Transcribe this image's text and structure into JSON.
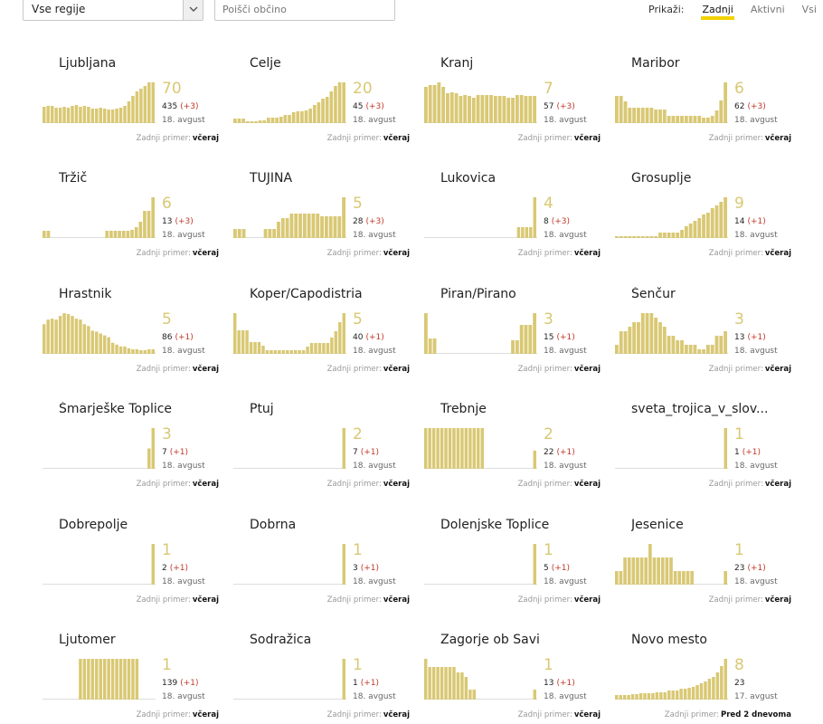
{
  "filters": {
    "region_select": {
      "value": "Vse regije"
    },
    "search": {
      "placeholder": "Poišči občino"
    },
    "show": {
      "label": "Prikaži:",
      "options": [
        "Zadnji",
        "Aktivni",
        "Vsi"
      ],
      "active": "Zadnji"
    }
  },
  "colors": {
    "bar": "#d9c874",
    "delta": "#c0392b",
    "accent": "#f2d200"
  },
  "last_case_label": "Zadnji primer:",
  "municipalities": [
    {
      "name": "Ljubljana",
      "active": "70",
      "total": "435",
      "delta": "(+3)",
      "date": "18. avgust",
      "last": "včeraj",
      "series": [
        18,
        19,
        19,
        17,
        17,
        18,
        17,
        19,
        20,
        18,
        19,
        18,
        16,
        16,
        17,
        16,
        15,
        15,
        16,
        17,
        19,
        24,
        30,
        35,
        38,
        41,
        45,
        45
      ]
    },
    {
      "name": "Celje",
      "active": "20",
      "total": "45",
      "delta": "(+3)",
      "date": "18. avgust",
      "last": "včeraj",
      "series": [
        5,
        5,
        5,
        2,
        2,
        2,
        3,
        3,
        6,
        6,
        6,
        7,
        9,
        9,
        12,
        13,
        13,
        14,
        16,
        20,
        23,
        27,
        29,
        35,
        41,
        45,
        45
      ]
    },
    {
      "name": "Kranj",
      "active": "7",
      "total": "57",
      "delta": "(+3)",
      "date": "18. avgust",
      "last": "včeraj",
      "series": [
        40,
        42,
        42,
        45,
        40,
        33,
        34,
        33,
        30,
        31,
        30,
        28,
        31,
        31,
        31,
        31,
        30,
        30,
        30,
        28,
        28,
        31,
        31,
        30,
        30,
        30
      ]
    },
    {
      "name": "Maribor",
      "active": "6",
      "total": "62",
      "delta": "(+3)",
      "date": "18. avgust",
      "last": "včeraj",
      "series": [
        30,
        30,
        24,
        17,
        17,
        17,
        17,
        17,
        17,
        15,
        15,
        15,
        8,
        8,
        8,
        8,
        8,
        8,
        8,
        8,
        6,
        6,
        8,
        14,
        25,
        45
      ]
    },
    {
      "name": "Tržič",
      "active": "6",
      "total": "13",
      "delta": "(+3)",
      "date": "18. avgust",
      "last": "včeraj",
      "series": [
        8,
        8,
        0,
        0,
        0,
        0,
        0,
        0,
        0,
        0,
        0,
        0,
        0,
        0,
        0,
        8,
        8,
        8,
        8,
        8,
        8,
        9,
        12,
        18,
        30,
        30,
        45
      ]
    },
    {
      "name": "TUJINA",
      "active": "5",
      "total": "28",
      "delta": "(+3)",
      "date": "18. avgust",
      "last": "včeraj",
      "series": [
        10,
        10,
        10,
        0,
        0,
        0,
        0,
        10,
        10,
        10,
        18,
        22,
        22,
        27,
        27,
        27,
        27,
        27,
        27,
        27,
        24,
        24,
        24,
        24,
        24,
        45
      ]
    },
    {
      "name": "Lukovica",
      "active": "4",
      "total": "8",
      "delta": "(+3)",
      "date": "18. avgust",
      "last": "včeraj",
      "series": [
        0,
        0,
        0,
        0,
        0,
        0,
        0,
        0,
        0,
        0,
        0,
        0,
        0,
        0,
        0,
        0,
        0,
        0,
        0,
        0,
        0,
        0,
        0,
        12,
        12,
        12,
        12,
        45
      ]
    },
    {
      "name": "Grosuplje",
      "active": "9",
      "total": "14",
      "delta": "(+1)",
      "date": "18. avgust",
      "last": "včeraj",
      "series": [
        2,
        2,
        2,
        2,
        2,
        2,
        2,
        2,
        2,
        2,
        6,
        6,
        6,
        6,
        6,
        9,
        13,
        16,
        19,
        22,
        26,
        28,
        33,
        36,
        40,
        45
      ]
    },
    {
      "name": "Hrastnik",
      "active": "5",
      "total": "86",
      "delta": "(+1)",
      "date": "18. avgust",
      "last": "včeraj",
      "series": [
        32,
        37,
        38,
        37,
        41,
        44,
        43,
        41,
        38,
        37,
        32,
        30,
        25,
        24,
        22,
        20,
        18,
        12,
        10,
        8,
        8,
        6,
        5,
        5,
        4,
        4,
        5,
        5
      ]
    },
    {
      "name": "Koper/Capodistria",
      "active": "5",
      "total": "40",
      "delta": "(+1)",
      "date": "18. avgust",
      "last": "včeraj",
      "series": [
        45,
        26,
        26,
        26,
        13,
        13,
        13,
        9,
        4,
        4,
        4,
        4,
        4,
        4,
        4,
        4,
        4,
        4,
        8,
        12,
        12,
        12,
        12,
        12,
        18,
        25,
        35,
        45
      ]
    },
    {
      "name": "Piran/Pirano",
      "active": "3",
      "total": "15",
      "delta": "(+1)",
      "date": "18. avgust",
      "last": "včeraj",
      "series": [
        45,
        17,
        17,
        0,
        0,
        0,
        0,
        0,
        0,
        0,
        0,
        0,
        0,
        0,
        0,
        0,
        0,
        0,
        0,
        0,
        15,
        15,
        32,
        32,
        32,
        45
      ]
    },
    {
      "name": "Šenčur",
      "active": "3",
      "total": "13",
      "delta": "(+1)",
      "date": "18. avgust",
      "last": "včeraj",
      "series": [
        10,
        25,
        25,
        30,
        35,
        35,
        45,
        45,
        45,
        40,
        35,
        30,
        20,
        20,
        15,
        15,
        10,
        10,
        10,
        5,
        5,
        10,
        10,
        20,
        20,
        25
      ]
    },
    {
      "name": "Šmarješke Toplice",
      "active": "3",
      "total": "7",
      "delta": "(+1)",
      "date": "18. avgust",
      "last": "včeraj",
      "series": [
        0,
        0,
        0,
        0,
        0,
        0,
        0,
        0,
        0,
        0,
        0,
        0,
        0,
        0,
        0,
        0,
        0,
        0,
        0,
        0,
        0,
        0,
        0,
        0,
        0,
        0,
        15,
        30
      ]
    },
    {
      "name": "Ptuj",
      "active": "2",
      "total": "7",
      "delta": "(+1)",
      "date": "18. avgust",
      "last": "včeraj",
      "series": [
        0,
        0,
        0,
        0,
        0,
        0,
        0,
        0,
        0,
        0,
        0,
        0,
        0,
        0,
        0,
        0,
        0,
        0,
        0,
        0,
        0,
        0,
        0,
        0,
        0,
        0,
        0,
        20
      ]
    },
    {
      "name": "Trebnje",
      "active": "2",
      "total": "22",
      "delta": "(+1)",
      "date": "18. avgust",
      "last": "včeraj",
      "series": [
        45,
        45,
        45,
        45,
        45,
        45,
        45,
        45,
        45,
        45,
        45,
        45,
        45,
        45,
        45,
        0,
        0,
        0,
        0,
        0,
        0,
        0,
        0,
        0,
        0,
        0,
        0,
        20
      ]
    },
    {
      "name": "sveta_trojica_v_slov...",
      "active": "1",
      "total": "1",
      "delta": "(+1)",
      "date": "18. avgust",
      "last": "včeraj",
      "series": [
        0,
        0,
        0,
        0,
        0,
        0,
        0,
        0,
        0,
        0,
        0,
        0,
        0,
        0,
        0,
        0,
        0,
        0,
        0,
        0,
        0,
        0,
        0,
        0,
        0,
        0,
        0,
        45
      ]
    },
    {
      "name": "Dobrepolje",
      "active": "1",
      "total": "2",
      "delta": "(+1)",
      "date": "18. avgust",
      "last": "včeraj",
      "series": [
        0,
        0,
        0,
        0,
        0,
        0,
        0,
        0,
        0,
        0,
        0,
        0,
        0,
        0,
        0,
        0,
        0,
        0,
        0,
        0,
        0,
        0,
        0,
        0,
        0,
        0,
        0,
        45
      ]
    },
    {
      "name": "Dobrna",
      "active": "1",
      "total": "3",
      "delta": "(+1)",
      "date": "18. avgust",
      "last": "včeraj",
      "series": [
        0,
        0,
        0,
        0,
        0,
        0,
        0,
        0,
        0,
        0,
        0,
        0,
        0,
        0,
        0,
        0,
        0,
        0,
        0,
        0,
        0,
        0,
        0,
        0,
        0,
        0,
        0,
        45
      ]
    },
    {
      "name": "Dolenjske Toplice",
      "active": "1",
      "total": "5",
      "delta": "(+1)",
      "date": "18. avgust",
      "last": "včeraj",
      "series": [
        0,
        0,
        0,
        0,
        0,
        0,
        0,
        0,
        0,
        0,
        0,
        0,
        0,
        0,
        0,
        0,
        0,
        0,
        0,
        0,
        0,
        0,
        0,
        0,
        0,
        0,
        0,
        45
      ]
    },
    {
      "name": "Jesenice",
      "active": "1",
      "total": "23",
      "delta": "(+1)",
      "date": "18. avgust",
      "last": "včeraj",
      "series": [
        15,
        15,
        30,
        30,
        30,
        30,
        30,
        30,
        45,
        30,
        30,
        30,
        30,
        30,
        15,
        15,
        15,
        15,
        15,
        0,
        0,
        0,
        0,
        0,
        0,
        0,
        15
      ]
    },
    {
      "name": "Ljutomer",
      "active": "1",
      "total": "139",
      "delta": "(+1)",
      "date": "18. avgust",
      "last": "včeraj",
      "series": [
        0,
        0,
        0,
        0,
        0,
        0,
        0,
        0,
        0,
        45,
        45,
        45,
        45,
        45,
        45,
        45,
        45,
        45,
        45,
        45,
        45,
        45,
        45,
        45,
        0,
        0,
        0,
        0
      ]
    },
    {
      "name": "Sodražica",
      "active": "1",
      "total": "1",
      "delta": "(+1)",
      "date": "18. avgust",
      "last": "včeraj",
      "series": [
        0,
        0,
        0,
        0,
        0,
        0,
        0,
        0,
        0,
        0,
        0,
        0,
        0,
        0,
        0,
        0,
        0,
        0,
        0,
        0,
        0,
        0,
        0,
        0,
        0,
        0,
        0,
        45
      ]
    },
    {
      "name": "Zagorje ob Savi",
      "active": "1",
      "total": "13",
      "delta": "(+1)",
      "date": "18. avgust",
      "last": "včeraj",
      "series": [
        45,
        36,
        36,
        36,
        36,
        36,
        36,
        36,
        30,
        30,
        25,
        11,
        11,
        0,
        0,
        0,
        0,
        0,
        0,
        0,
        0,
        0,
        0,
        0,
        0,
        0,
        0,
        11
      ]
    },
    {
      "name": "Novo mesto",
      "active": "8",
      "total": "23",
      "delta": "",
      "date": "17. avgust",
      "last": "Pred 2 dnevoma",
      "series": [
        5,
        5,
        5,
        5,
        6,
        6,
        7,
        7,
        7,
        7,
        8,
        8,
        8,
        10,
        10,
        10,
        12,
        12,
        13,
        14,
        16,
        18,
        20,
        23,
        25,
        30,
        37,
        45
      ]
    }
  ]
}
